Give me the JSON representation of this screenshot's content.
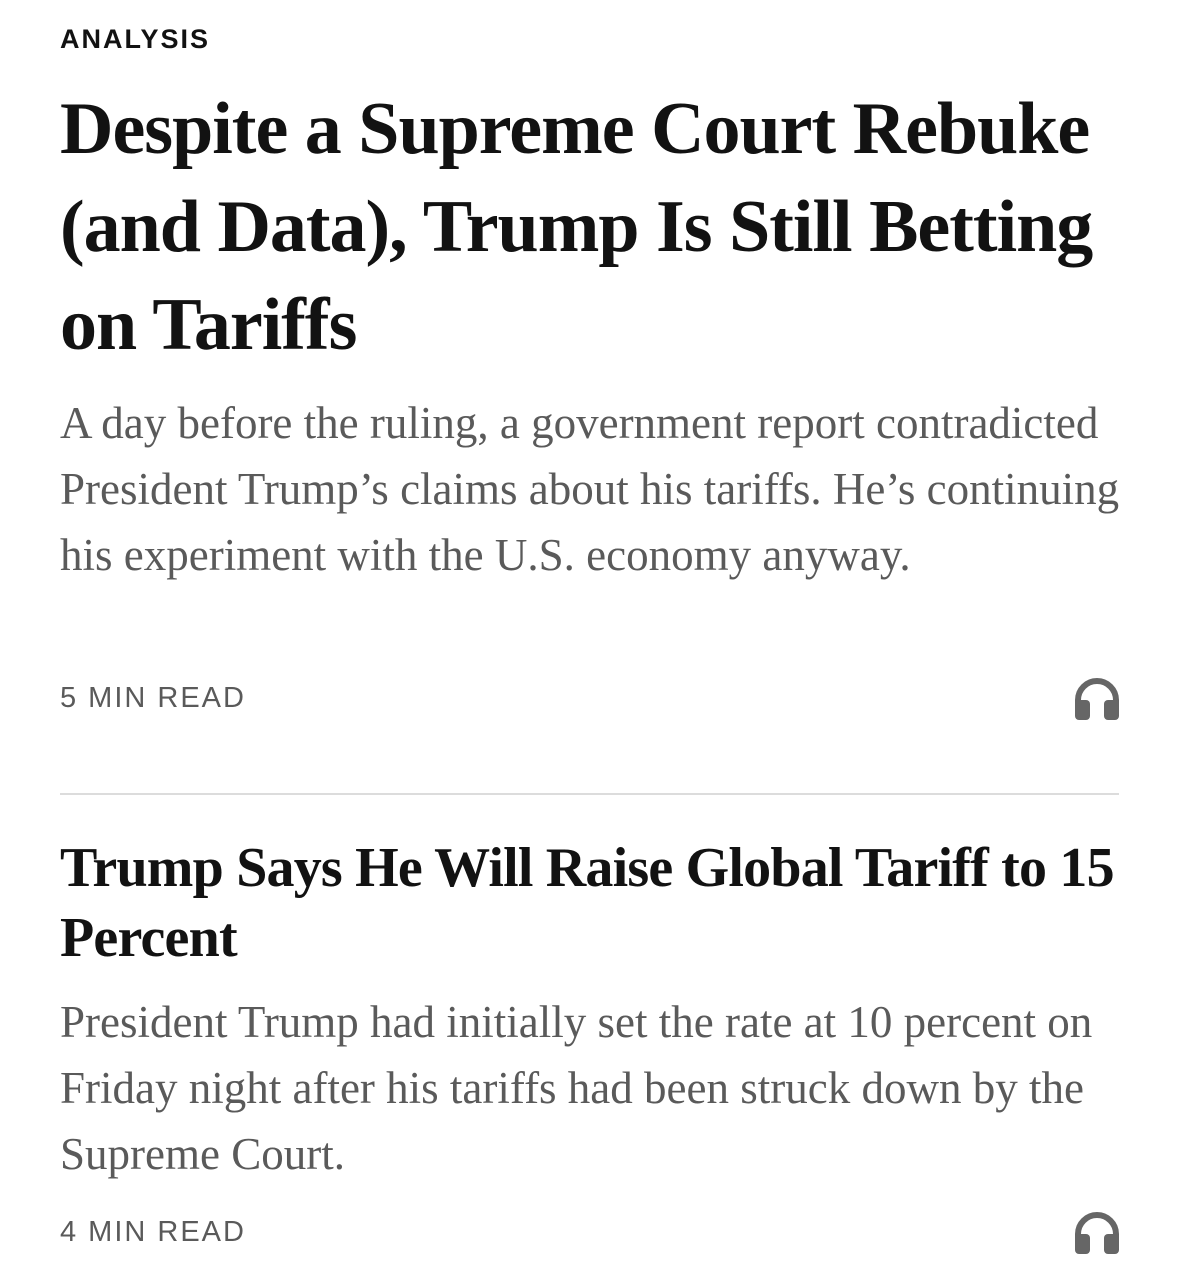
{
  "stories": [
    {
      "kicker": "ANALYSIS",
      "headline": "Despite a Supreme Court Rebuke (and Data), Trump Is Still Betting on Tariffs",
      "summary": "A day before the ruling, a government report contradicted President Trump’s claims about his tariffs. He’s continuing his experiment with the U.S. economy anyway.",
      "read_time": "5 MIN READ",
      "icon": "headphones-icon"
    },
    {
      "headline": "Trump Says He Will Raise Global Tariff to 15 Percent",
      "summary": "President Trump had initially set the rate at 10 percent on Friday night after his tariffs had been struck down by the Supreme Court.",
      "read_time": "4 MIN READ",
      "icon": "headphones-icon"
    }
  ],
  "colors": {
    "text": "#121212",
    "secondary": "#5a5a5a",
    "icon": "#666666",
    "divider": "#dcdcdc"
  }
}
